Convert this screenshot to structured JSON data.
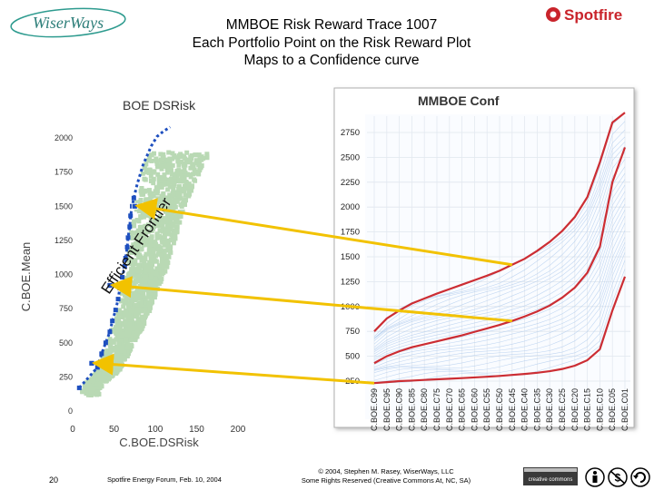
{
  "slide": {
    "logo_left": "WiserWays",
    "logo_right": "Spotfire",
    "title_lines": [
      "MMBOE Risk Reward Trace 1007",
      "Each Portfolio Point on the Risk Reward Plot",
      "Maps to a Confidence curve"
    ],
    "page_number": "20",
    "event": "Spotfire Energy Forum, Feb. 10, 2004",
    "copyright_lines": [
      "© 2004, Stephen M. Rasey, WiserWays, LLC",
      "Some Rights Reserved (Creative Commons At, NC, SA)"
    ],
    "cc_badge": "creative commons",
    "colors": {
      "scatter": "#b9d9b4",
      "frontier": "#1e4fbf",
      "arrow": "#f2c200",
      "curve": "#cc2d33",
      "curve_light": "#a9c8ec"
    }
  },
  "chart_data": [
    {
      "type": "scatter",
      "title": "BOE DSRisk",
      "xlabel": "C.BOE.DSRisk",
      "ylabel": "C.BOE.Mean",
      "xlim": [
        0,
        200
      ],
      "ylim": [
        0,
        2100
      ],
      "x_ticks": [
        0,
        50,
        100,
        150,
        200
      ],
      "y_ticks": [
        0,
        250,
        500,
        750,
        1000,
        1250,
        1500,
        1750,
        2000
      ],
      "annotation": "Efficient Frontier",
      "series": [
        {
          "x": [
            8,
            30,
            35,
            40,
            45,
            48,
            52,
            55,
            57,
            60,
            63,
            64,
            66,
            67,
            69,
            70,
            72,
            74,
            78,
            85,
            95,
            102,
            110,
            118
          ],
          "y": [
            170,
            320,
            420,
            500,
            580,
            660,
            740,
            820,
            900,
            980,
            1060,
            1120,
            1200,
            1270,
            1350,
            1430,
            1500,
            1560,
            1660,
            1800,
            1940,
            2010,
            2050,
            2080
          ]
        }
      ],
      "highlighted_points": [
        {
          "x": 23,
          "y": 350
        },
        {
          "x": 45,
          "y": 920
        },
        {
          "x": 75,
          "y": 1500
        }
      ]
    },
    {
      "type": "line",
      "title": "MMBOE Conf",
      "categories": [
        "C.BOE.C99",
        "C.BOE.C95",
        "C.BOE.C90",
        "C.BOE.C85",
        "C.BOE.C80",
        "C.BOE.C75",
        "C.BOE.C70",
        "C.BOE.C65",
        "C.BOE.C60",
        "C.BOE.C55",
        "C.BOE.C50",
        "C.BOE.C45",
        "C.BOE.C40",
        "C.BOE.C35",
        "C.BOE.C30",
        "C.BOE.C25",
        "C.BOE.C20",
        "C.BOE.C15",
        "C.BOE.C10",
        "C.BOE.C05",
        "C.BOE.C01"
      ],
      "ylim": [
        0,
        2900
      ],
      "y_ticks": [
        250,
        500,
        750,
        1000,
        1250,
        1500,
        1750,
        2000,
        2250,
        2500,
        2750
      ],
      "grid": true,
      "series": [
        {
          "values": [
            230,
            240,
            250,
            255,
            262,
            268,
            274,
            280,
            287,
            294,
            302,
            312,
            322,
            334,
            350,
            372,
            405,
            460,
            570,
            960,
            1300
          ]
        },
        {
          "values": [
            430,
            500,
            550,
            590,
            620,
            650,
            680,
            710,
            745,
            780,
            815,
            855,
            900,
            950,
            1010,
            1090,
            1190,
            1340,
            1600,
            2250,
            2600
          ]
        },
        {
          "values": [
            750,
            880,
            960,
            1030,
            1080,
            1130,
            1175,
            1220,
            1265,
            1310,
            1360,
            1420,
            1480,
            1560,
            1650,
            1760,
            1900,
            2100,
            2450,
            2850,
            2950
          ]
        }
      ]
    }
  ]
}
